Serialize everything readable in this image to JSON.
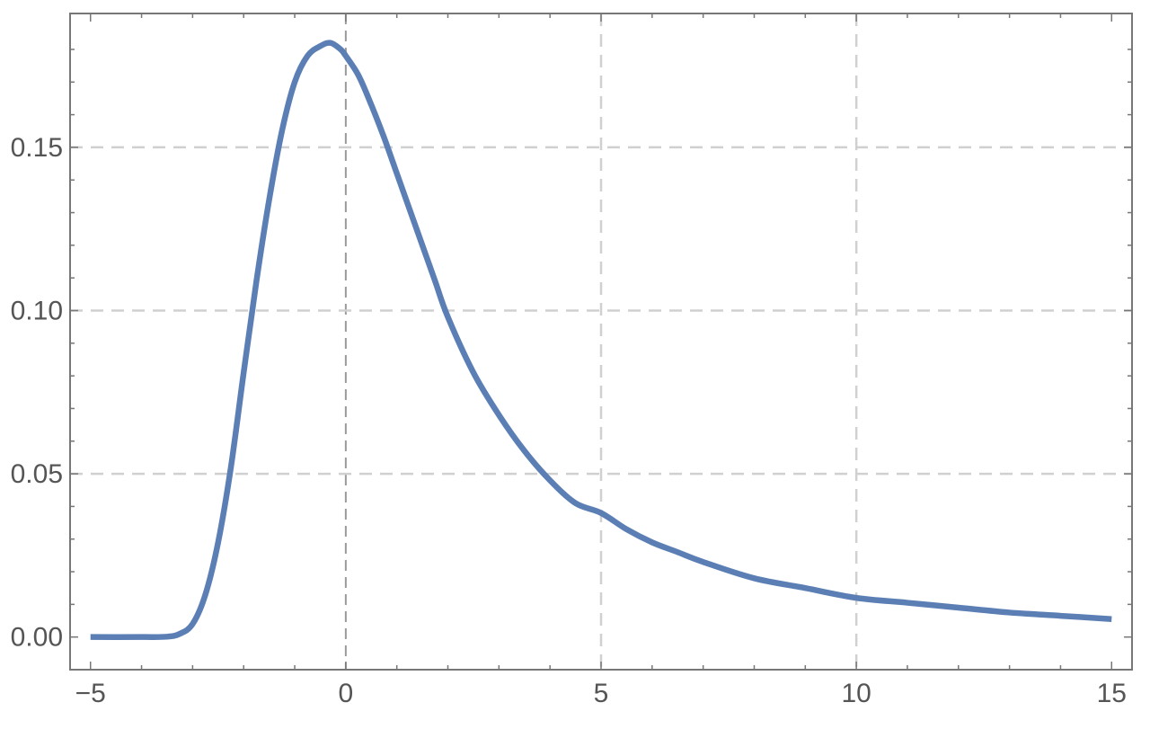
{
  "chart_data": {
    "type": "line",
    "title": "",
    "xlabel": "",
    "ylabel": "",
    "xlim": [
      -5.4,
      15.4
    ],
    "ylim": [
      -0.01,
      0.191
    ],
    "x_ticks": [
      -5,
      0,
      5,
      10,
      15
    ],
    "x_tick_labels": [
      "−5",
      "0",
      "5",
      "10",
      "15"
    ],
    "y_ticks": [
      0.0,
      0.05,
      0.1,
      0.15
    ],
    "y_tick_labels": [
      "0.00",
      "0.05",
      "0.10",
      "0.15"
    ],
    "grid": true,
    "grid_x": [
      0,
      5,
      10
    ],
    "grid_y": [
      0.05,
      0.1,
      0.15
    ],
    "line_color": "#5b7fb5",
    "grid_color": "#d0d0d0",
    "series": [
      {
        "x": [
          -5,
          -4,
          -3.5,
          -3.25,
          -3,
          -2.75,
          -2.5,
          -2.25,
          -2,
          -1.75,
          -1.5,
          -1.25,
          -1,
          -0.75,
          -0.5,
          -0.3,
          -0.1,
          0,
          0.25,
          0.5,
          0.75,
          1,
          1.25,
          1.5,
          1.75,
          2,
          2.5,
          3,
          3.5,
          4,
          4.5,
          5,
          5.5,
          6,
          6.5,
          7,
          8,
          9,
          10,
          11,
          12,
          13,
          14,
          15
        ],
        "y": [
          0.0,
          0.0,
          0.0001,
          0.001,
          0.004,
          0.013,
          0.029,
          0.052,
          0.081,
          0.109,
          0.134,
          0.155,
          0.17,
          0.178,
          0.181,
          0.182,
          0.18,
          0.178,
          0.172,
          0.163,
          0.153,
          0.142,
          0.131,
          0.12,
          0.109,
          0.098,
          0.081,
          0.068,
          0.057,
          0.048,
          0.041,
          0.038,
          0.033,
          0.029,
          0.026,
          0.023,
          0.018,
          0.015,
          0.012,
          0.0105,
          0.009,
          0.0075,
          0.0065,
          0.0055
        ]
      }
    ]
  }
}
